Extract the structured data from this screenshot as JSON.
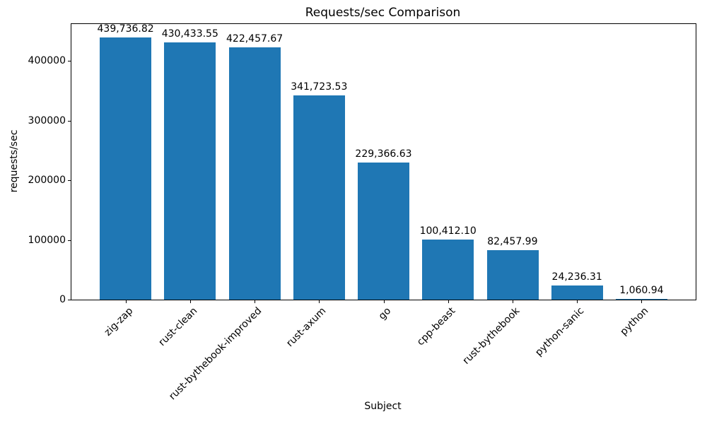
{
  "chart_data": {
    "type": "bar",
    "title": "Requests/sec Comparison",
    "xlabel": "Subject",
    "ylabel": "requests/sec",
    "categories": [
      "zig-zap",
      "rust-clean",
      "rust-bythebook-improved",
      "rust-axum",
      "go",
      "cpp-beast",
      "rust-bythebook",
      "python-sanic",
      "python"
    ],
    "values": [
      439736.82,
      430433.55,
      422457.67,
      341723.53,
      229366.63,
      100412.1,
      82457.99,
      24236.31,
      1060.94
    ],
    "value_labels": [
      "439,736.82",
      "430,433.55",
      "422,457.67",
      "341,723.53",
      "229,366.63",
      "100,412.10",
      "82,457.99",
      "24,236.31",
      "1,060.94"
    ],
    "yticks": [
      0,
      100000,
      200000,
      300000,
      400000
    ],
    "ytick_labels": [
      "0",
      "100000",
      "200000",
      "300000",
      "400000"
    ],
    "ylim": [
      0,
      461723.66
    ],
    "bar_color": "#1f77b4",
    "axis_color": "#000000",
    "x_tick_rotation_deg": 45,
    "grid": false,
    "legend_position": "none"
  }
}
